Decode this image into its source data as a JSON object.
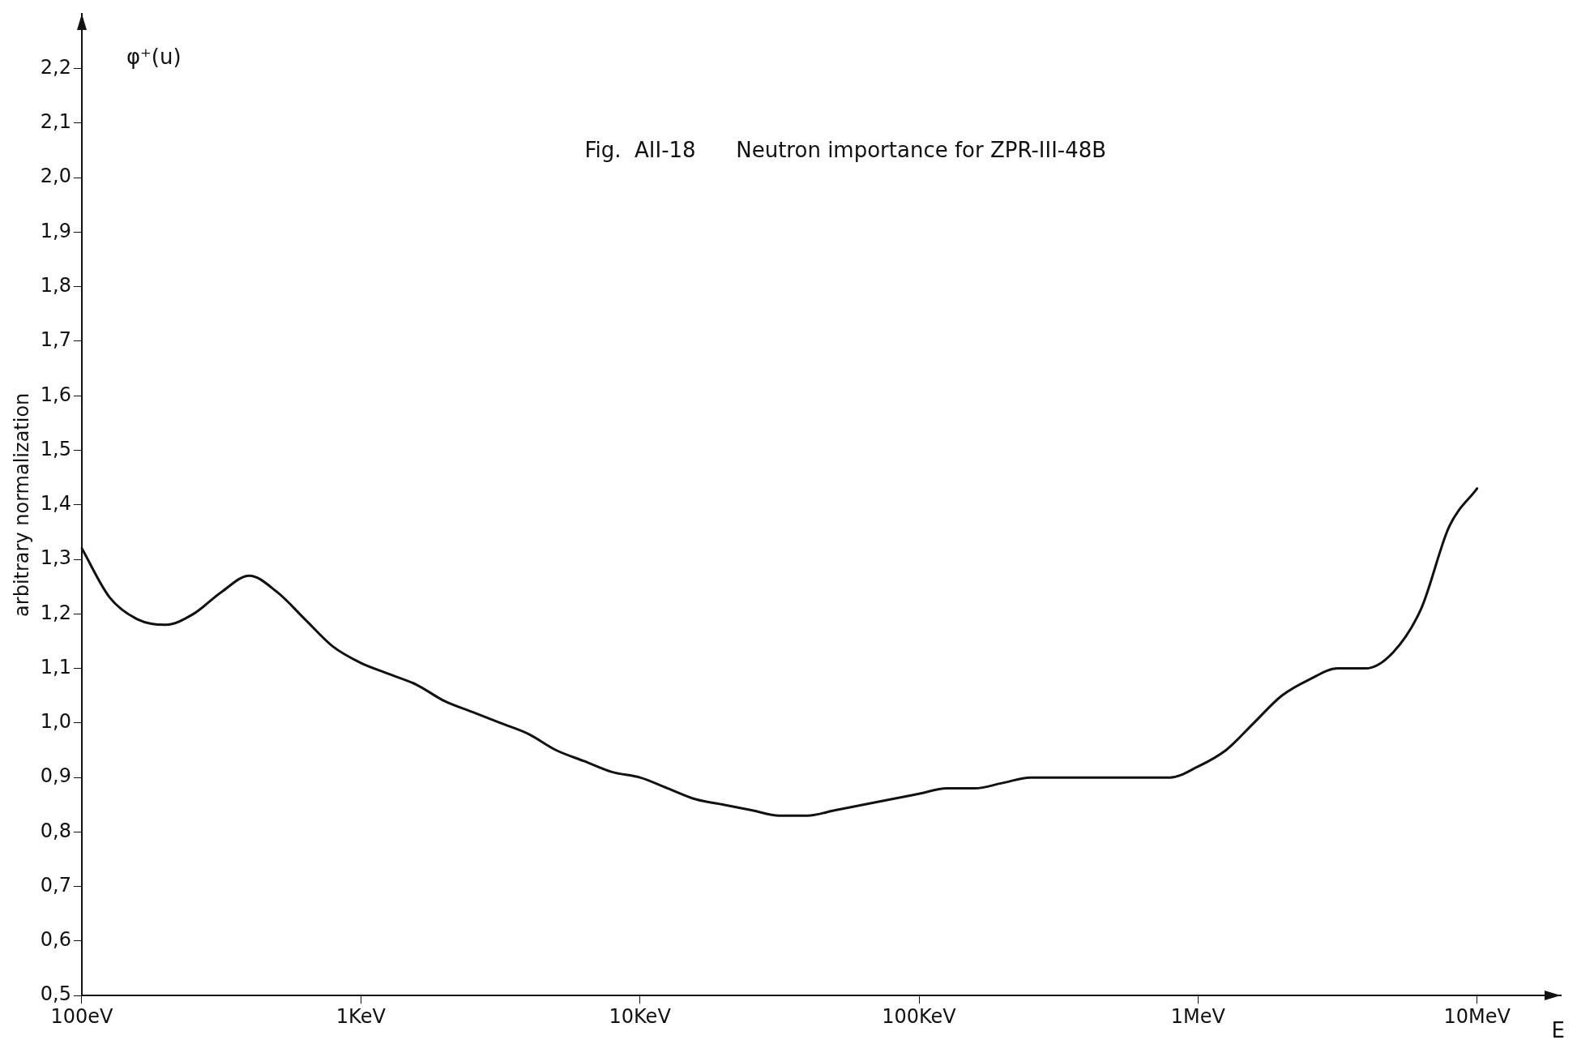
{
  "chart_data": {
    "type": "line",
    "title": "Fig.  AII-18      Neutron importance for ZPR-III-48B",
    "xlabel": "E",
    "ylabel": "arbitrary normalization",
    "annotations": [
      "φ⁺(u)"
    ],
    "categories": [
      "100eV",
      null,
      null,
      null,
      null,
      null,
      null,
      null,
      null,
      null,
      "1KeV",
      null,
      null,
      null,
      null,
      null,
      null,
      null,
      null,
      null,
      "10KeV",
      null,
      null,
      null,
      null,
      null,
      null,
      null,
      null,
      null,
      "100KeV",
      null,
      null,
      null,
      null,
      null,
      null,
      null,
      null,
      null,
      "1MeV",
      null,
      null,
      null,
      null,
      null,
      null,
      null,
      null,
      null,
      "10MeV",
      null,
      null,
      null
    ],
    "series": [
      {
        "color": "#111111",
        "values": [
          1.32,
          1.23,
          1.19,
          1.18,
          1.2,
          1.24,
          1.27,
          1.24,
          1.19,
          1.14,
          1.11,
          1.09,
          1.07,
          1.04,
          1.02,
          1.0,
          0.98,
          0.95,
          0.93,
          0.91,
          0.9,
          0.88,
          0.86,
          0.85,
          0.84,
          0.83,
          0.83,
          0.84,
          0.85,
          0.86,
          0.87,
          0.88,
          0.88,
          0.89,
          0.9,
          0.9,
          0.9,
          0.9,
          0.9,
          0.9,
          0.92,
          0.95,
          1.0,
          1.05,
          1.08,
          1.1,
          1.1,
          1.13,
          1.21,
          1.36,
          1.43,
          null,
          null,
          null
        ]
      }
    ],
    "ylim": [
      0.5,
      2.3
    ],
    "yticks": [
      {
        "value": 0.5,
        "label": "0,5"
      },
      {
        "value": 0.6,
        "label": "0,6"
      },
      {
        "value": 0.7,
        "label": "0,7"
      },
      {
        "value": 0.8,
        "label": "0,8"
      },
      {
        "value": 0.9,
        "label": "0,9"
      },
      {
        "value": 1.0,
        "label": "1,0"
      },
      {
        "value": 1.1,
        "label": "1,1"
      },
      {
        "value": 1.2,
        "label": "1,2"
      },
      {
        "value": 1.3,
        "label": "1,3"
      },
      {
        "value": 1.4,
        "label": "1,4"
      },
      {
        "value": 1.5,
        "label": "1,5"
      },
      {
        "value": 1.6,
        "label": "1,6"
      },
      {
        "value": 1.7,
        "label": "1,7"
      },
      {
        "value": 1.8,
        "label": "1,8"
      },
      {
        "value": 1.9,
        "label": "1,9"
      },
      {
        "value": 2.0,
        "label": "2,0"
      },
      {
        "value": 2.1,
        "label": "2,1"
      },
      {
        "value": 2.2,
        "label": "2,2"
      }
    ],
    "grid": false,
    "legend": false,
    "marker": "none",
    "line_style": "solid"
  }
}
